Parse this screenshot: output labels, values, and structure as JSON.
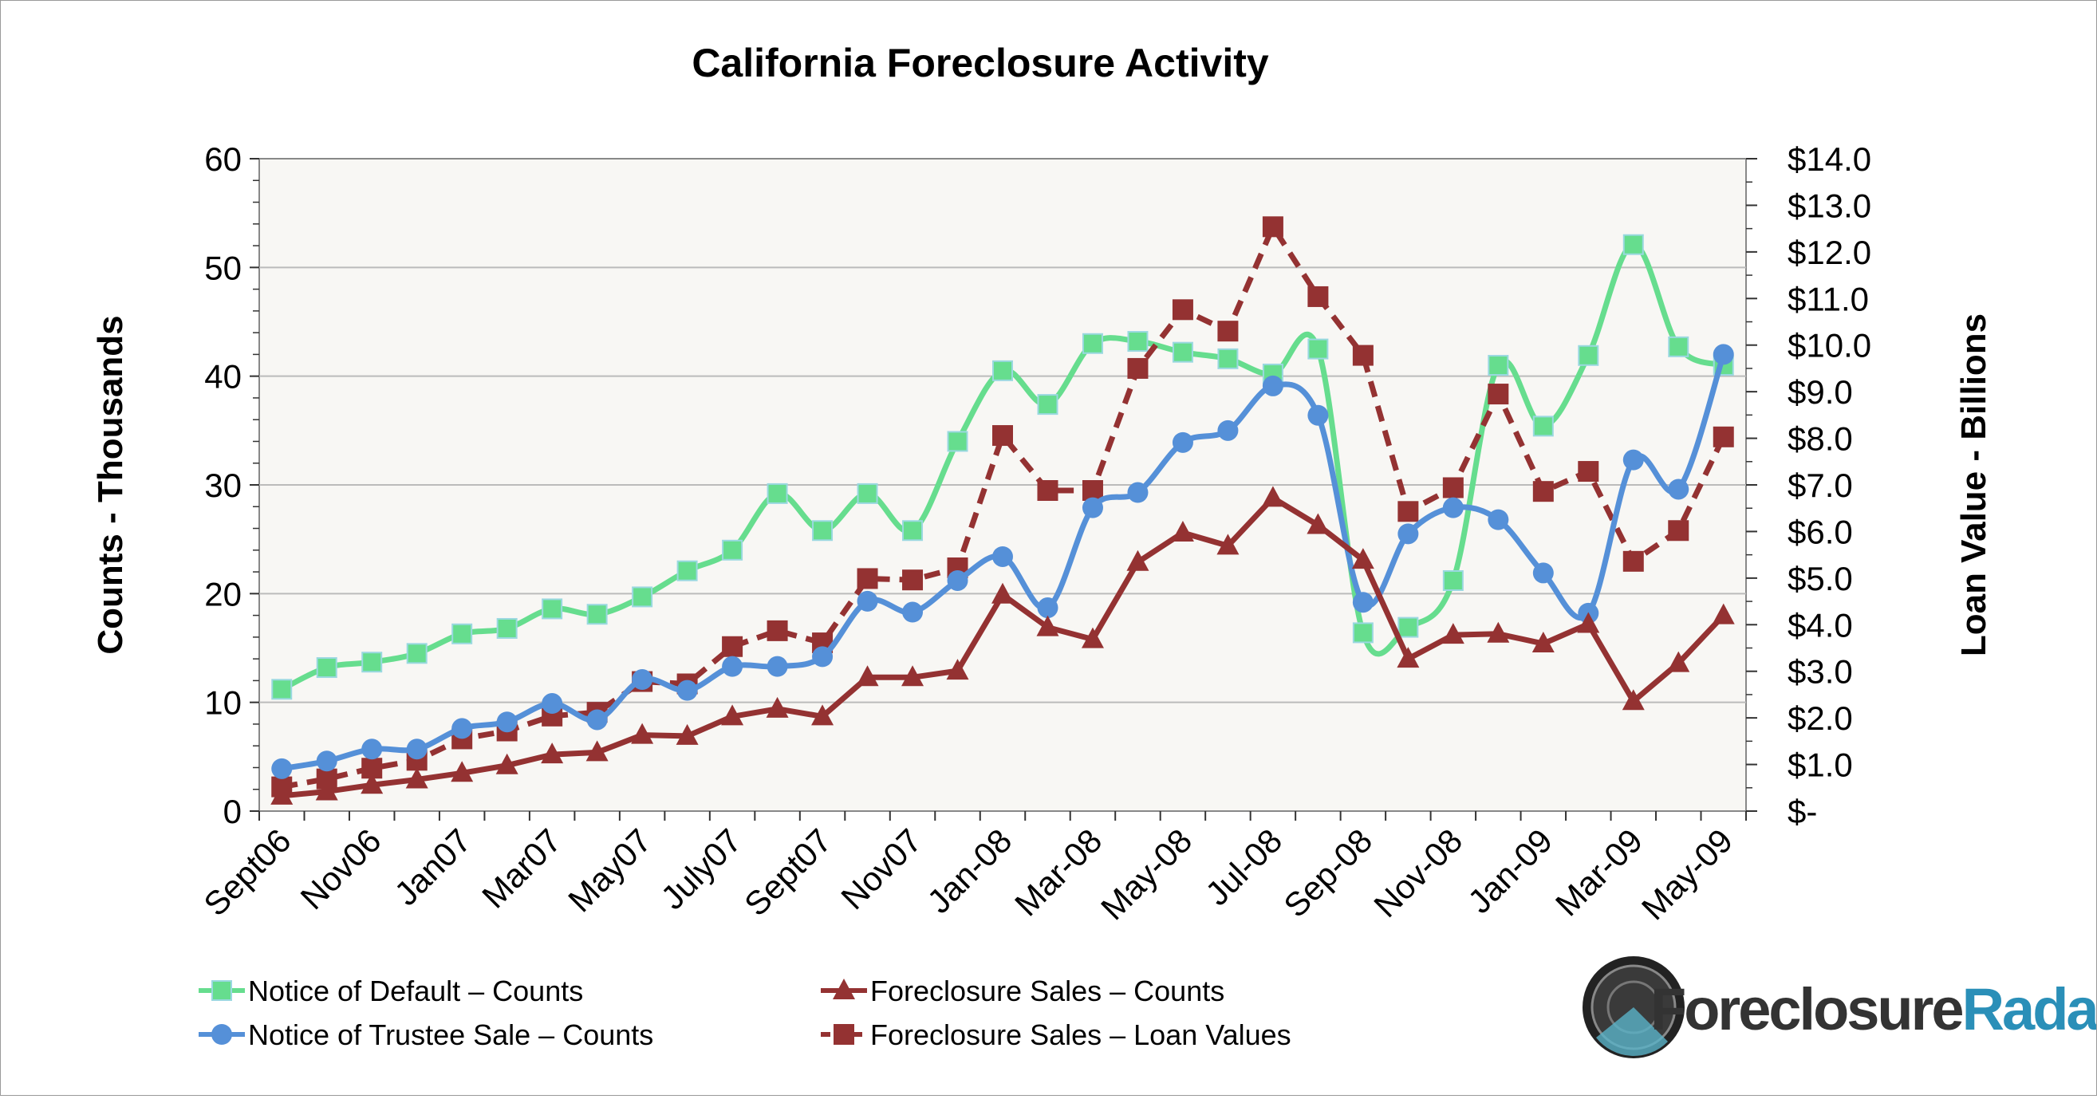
{
  "chart_data": {
    "type": "line",
    "title": "California Foreclosure Activity",
    "ylabel": "Counts - Thousands",
    "y2label": "Loan Value - Billions",
    "ylim": [
      0,
      60
    ],
    "y2lim": [
      0,
      14
    ],
    "yticks": [
      "0",
      "10",
      "20",
      "30",
      "40",
      "50",
      "60"
    ],
    "y2ticks": [
      "$-",
      "$1.0",
      "$2.0",
      "$3.0",
      "$4.0",
      "$5.0",
      "$6.0",
      "$7.0",
      "$8.0",
      "$9.0",
      "$10.0",
      "$11.0",
      "$12.0",
      "$13.0",
      "$14.0"
    ],
    "categories": [
      "Sept06",
      "",
      "Nov06",
      "",
      "Jan07",
      "",
      "Mar07",
      "",
      "May07",
      "",
      "July07",
      "",
      "Sept07",
      "",
      "Nov07",
      "",
      "Jan-08",
      "",
      "Mar-08",
      "",
      "May-08",
      "",
      "Jul-08",
      "",
      "Sep-08",
      "",
      "Nov-08",
      "",
      "Jan-09",
      "",
      "Mar-09",
      "",
      "May-09"
    ],
    "grid": true,
    "legend": "bottom",
    "series": [
      {
        "name": "Notice of Default – Counts",
        "axis": "left",
        "color": "#66dd8e",
        "marker": "square",
        "smooth": true,
        "dashed": false,
        "values": [
          11.2,
          13.2,
          13.7,
          14.5,
          16.3,
          16.8,
          18.6,
          18.1,
          19.7,
          22.1,
          24.0,
          29.2,
          25.8,
          29.2,
          25.8,
          34.0,
          40.5,
          37.4,
          43.0,
          43.2,
          42.2,
          41.6,
          40.2,
          42.5,
          16.4,
          16.9,
          21.2,
          41.0,
          35.4,
          41.9,
          52.1,
          42.7,
          41.0
        ]
      },
      {
        "name": "Notice of Trustee Sale – Counts",
        "axis": "left",
        "color": "#5590d8",
        "marker": "circle",
        "smooth": true,
        "dashed": false,
        "values": [
          3.9,
          4.6,
          5.7,
          5.7,
          7.6,
          8.2,
          9.9,
          8.4,
          12.1,
          11.1,
          13.3,
          13.3,
          14.2,
          19.3,
          18.3,
          21.2,
          23.4,
          18.7,
          27.9,
          29.3,
          33.9,
          35.0,
          39.1,
          36.4,
          19.2,
          25.5,
          27.9,
          26.8,
          21.9,
          18.2,
          32.3,
          29.6,
          42.0
        ]
      },
      {
        "name": "Foreclosure Sales – Counts",
        "axis": "left",
        "color": "#943232",
        "marker": "triangle",
        "smooth": false,
        "dashed": false,
        "values": [
          1.4,
          1.8,
          2.4,
          2.9,
          3.5,
          4.2,
          5.2,
          5.4,
          7.0,
          6.9,
          8.7,
          9.4,
          8.7,
          12.3,
          12.3,
          12.9,
          19.9,
          16.9,
          15.8,
          22.9,
          25.6,
          24.4,
          28.8,
          26.3,
          23.1,
          14.0,
          16.2,
          16.3,
          15.4,
          17.2,
          10.1,
          13.6,
          18.0
        ]
      },
      {
        "name": "Foreclosure Sales – Loan Values",
        "axis": "right",
        "color": "#943232",
        "marker": "square",
        "smooth": false,
        "dashed": true,
        "values": [
          0.52,
          0.69,
          0.92,
          1.09,
          1.55,
          1.72,
          2.04,
          2.12,
          2.78,
          2.73,
          3.53,
          3.87,
          3.61,
          4.99,
          4.96,
          5.22,
          8.06,
          6.88,
          6.88,
          9.5,
          10.76,
          10.3,
          12.54,
          11.04,
          9.78,
          6.43,
          6.94,
          8.95,
          6.86,
          7.29,
          5.36,
          6.02,
          8.03
        ]
      }
    ]
  },
  "logo": {
    "text_a": "Foreclosure",
    "text_b": "Radar",
    "tm": "™"
  }
}
